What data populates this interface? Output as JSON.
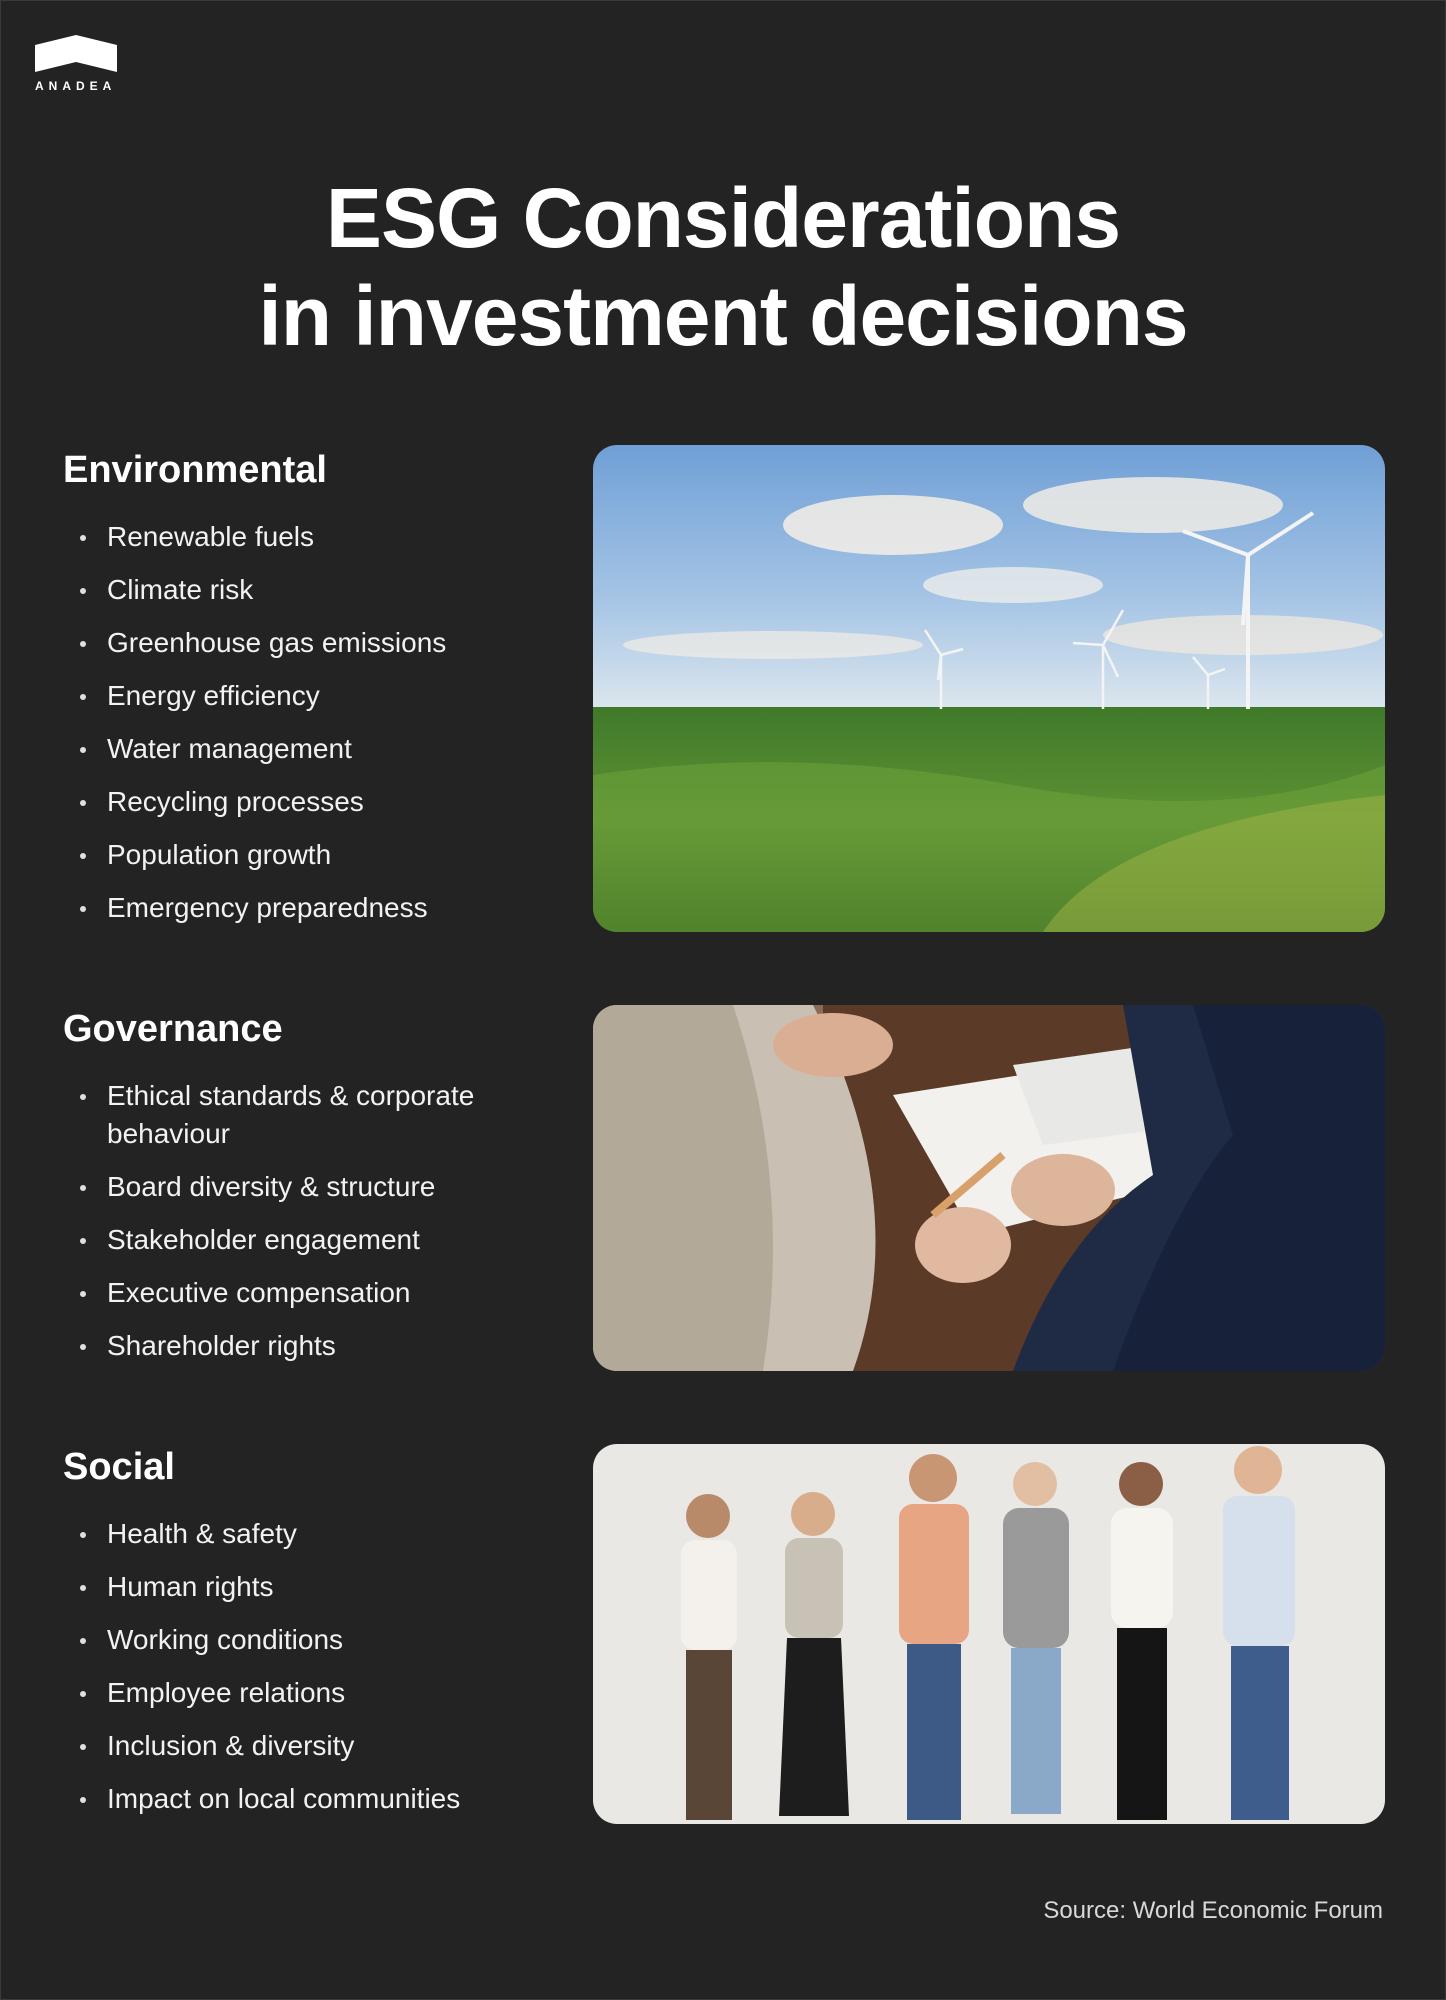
{
  "brand": {
    "name": "ANADEA",
    "logo_icon": "roof-logo-icon"
  },
  "title": {
    "line1": "ESG Considerations",
    "line2": "in investment decisions"
  },
  "sections": [
    {
      "heading": "Environmental",
      "items": [
        "Renewable fuels",
        "Climate risk",
        "Greenhouse gas emissions",
        "Energy efficiency",
        "Water management",
        "Recycling processes",
        "Population growth",
        "Emergency preparedness"
      ],
      "photo": "wind-turbines-field-photo"
    },
    {
      "heading": "Governance",
      "items": [
        "Ethical standards & corporate behaviour",
        "Board diversity & structure",
        "Stakeholder engagement",
        "Executive compensation",
        "Shareholder rights"
      ],
      "photo": "business-meeting-photo"
    },
    {
      "heading": "Social",
      "items": [
        "Health & safety",
        "Human rights",
        "Working conditions",
        "Employee relations",
        "Inclusion & diversity",
        "Impact on local communities"
      ],
      "photo": "diverse-people-group-photo"
    }
  ],
  "source": "Source: World Economic Forum",
  "colors": {
    "background": "#232324",
    "text": "#ffffff"
  }
}
